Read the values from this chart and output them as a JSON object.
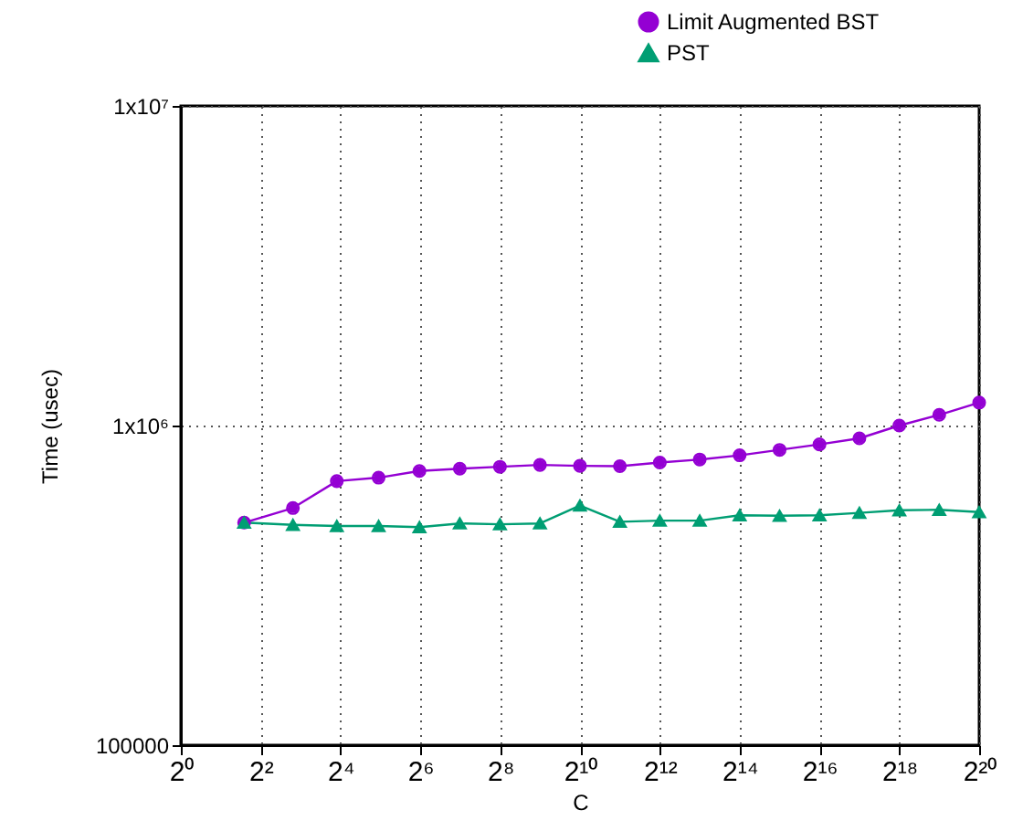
{
  "chart_data": {
    "type": "line",
    "xlabel": "C",
    "ylabel": "Time (usec)",
    "log": "xy",
    "grid": true,
    "legend": "top right",
    "x": [
      3,
      7,
      15,
      31,
      63,
      127,
      255,
      511,
      1023,
      2047,
      4095,
      8191,
      16383,
      32767,
      65535,
      131071,
      262143,
      524287,
      1048575
    ],
    "xlim": [
      1,
      1048576
    ],
    "xticks": [
      {
        "value": 1,
        "label": "2⁰"
      },
      {
        "value": 4,
        "label": "2²"
      },
      {
        "value": 16,
        "label": "2⁴"
      },
      {
        "value": 64,
        "label": "2⁶"
      },
      {
        "value": 256,
        "label": "2⁸"
      },
      {
        "value": 1024,
        "label": "2¹⁰"
      },
      {
        "value": 4096,
        "label": "2¹²"
      },
      {
        "value": 16384,
        "label": "2¹⁴"
      },
      {
        "value": 65536,
        "label": "2¹⁶"
      },
      {
        "value": 262144,
        "label": "2¹⁸"
      },
      {
        "value": 1048576,
        "label": "2²⁰"
      }
    ],
    "ylim": [
      100000,
      10000000
    ],
    "yticks": [
      100000,
      {
        "value": 1000000,
        "label": "1x10⁶"
      },
      {
        "value": 10000000,
        "label": "1x10⁷"
      }
    ],
    "series": [
      {
        "name": "Limit Augmented BST",
        "color": "#9400d3",
        "marker": "circle",
        "values": [
          497000,
          552000,
          670000,
          687000,
          721000,
          733000,
          743000,
          753000,
          748000,
          746000,
          766000,
          783000,
          807000,
          839000,
          873000,
          912000,
          1000000,
          1080000,
          1180000
        ]
      },
      {
        "name": "PST",
        "color": "#009e73",
        "marker": "triangle",
        "values": [
          497000,
          489000,
          485000,
          485000,
          481000,
          494000,
          491000,
          494000,
          562000,
          500000,
          504000,
          504000,
          524000,
          522000,
          524000,
          533000,
          543000,
          545000,
          536000
        ]
      }
    ]
  }
}
